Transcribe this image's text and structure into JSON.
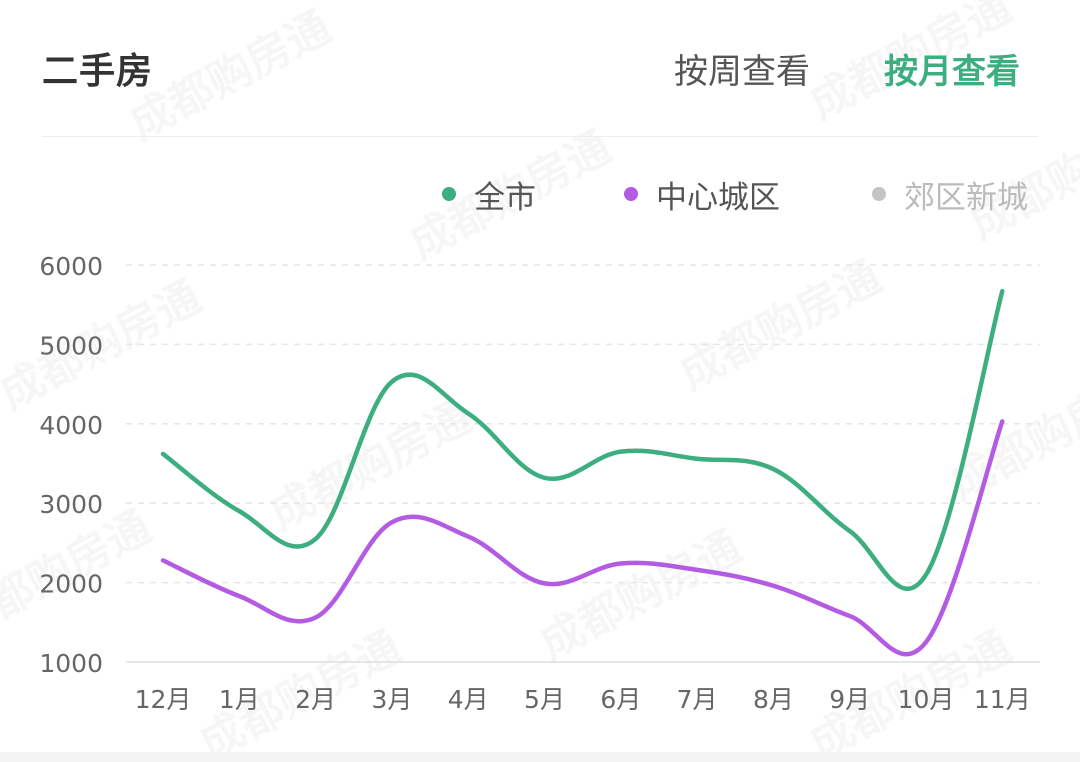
{
  "header": {
    "title": "二手房",
    "tab_week": "按周查看",
    "tab_month": "按月查看"
  },
  "colors": {
    "accent": "#3cae7f",
    "series_1": "#3cae7f",
    "series_2": "#b35be3",
    "series_3_disabled": "#c4c4c4"
  },
  "legend": [
    {
      "label": "全市",
      "color": "#3cae7f",
      "active": true
    },
    {
      "label": "中心城区",
      "color": "#b35be3",
      "active": true
    },
    {
      "label": "郊区新城",
      "color": "#c4c4c4",
      "active": false
    }
  ],
  "watermark": "成都购房通",
  "chart_data": {
    "type": "line",
    "title": "",
    "xlabel": "",
    "ylabel": "",
    "categories": [
      "12月",
      "1月",
      "2月",
      "3月",
      "4月",
      "5月",
      "6月",
      "7月",
      "8月",
      "9月",
      "10月",
      "11月"
    ],
    "yticks": [
      "1000",
      "2000",
      "3000",
      "4000",
      "5000",
      "6000"
    ],
    "ylim": [
      1000,
      6000
    ],
    "grid": true,
    "legend_position": "top-right",
    "series": [
      {
        "name": "全市",
        "color": "#3cae7f",
        "values": [
          3620,
          2900,
          2550,
          4530,
          4130,
          3320,
          3650,
          3560,
          3430,
          2650,
          2100,
          5670
        ]
      },
      {
        "name": "中心城区",
        "color": "#b35be3",
        "values": [
          2280,
          1830,
          1560,
          2760,
          2580,
          1990,
          2240,
          2160,
          1960,
          1580,
          1250,
          4030
        ]
      }
    ]
  }
}
